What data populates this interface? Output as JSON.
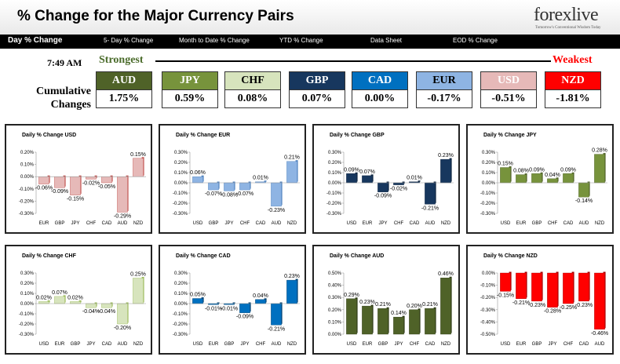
{
  "header": {
    "title": "% Change for the Major Currency Pairs",
    "logo_text": "forexlive",
    "logo_tagline": "Tomorrow's Conventional Wisdom Today"
  },
  "nav": {
    "tabs": [
      {
        "label": "Day % Change",
        "active": true
      },
      {
        "label": "5- Day % Change",
        "active": false
      },
      {
        "label": "Month to Date % Change",
        "active": false
      },
      {
        "label": "YTD % Change",
        "active": false
      },
      {
        "label": "Data Sheet",
        "active": false
      },
      {
        "label": "EOD % Change",
        "active": false
      }
    ]
  },
  "summary": {
    "time": "7:49 AM",
    "strongest_label": "Strongest",
    "weakest_label": "Weakest",
    "cumulative_label_line1": "Cumulative",
    "cumulative_label_line2": "Changes",
    "currencies": [
      {
        "code": "AUD",
        "value": "1.75%",
        "color": "#4f6228",
        "text": "#ffffff"
      },
      {
        "code": "JPY",
        "value": "0.59%",
        "color": "#77933c",
        "text": "#ffffff"
      },
      {
        "code": "CHF",
        "value": "0.08%",
        "color": "#d7e4bd",
        "text": "#000000"
      },
      {
        "code": "GBP",
        "value": "0.07%",
        "color": "#17375e",
        "text": "#ffffff"
      },
      {
        "code": "CAD",
        "value": "0.00%",
        "color": "#0070c0",
        "text": "#ffffff"
      },
      {
        "code": "EUR",
        "value": "-0.17%",
        "color": "#8eb4e3",
        "text": "#000000"
      },
      {
        "code": "USD",
        "value": "-0.51%",
        "color": "#e6b9b8",
        "text": "#ffffff"
      },
      {
        "code": "NZD",
        "value": "-1.81%",
        "color": "#ff0000",
        "text": "#ffffff"
      }
    ]
  },
  "chart_data": [
    {
      "type": "bar",
      "title": "Daily % Change USD",
      "categories": [
        "EUR",
        "GBP",
        "JPY",
        "CHF",
        "CAD",
        "AUD",
        "NZD"
      ],
      "values": [
        -0.06,
        -0.09,
        -0.15,
        -0.02,
        -0.05,
        -0.29,
        0.15
      ],
      "labels": [
        "-0.06%",
        "-0.09%",
        "-0.15%",
        "-0.02%",
        "-0.05%",
        "-0.29%",
        "0.15%"
      ],
      "ylim": [
        -0.3,
        0.2
      ],
      "ticks": [
        0.2,
        0.1,
        0.0,
        -0.1,
        -0.2,
        -0.3
      ],
      "tick_labels": [
        "0.20%",
        "0.10%",
        "0.00%",
        "-0.10%",
        "-0.20%",
        "-0.30%"
      ],
      "color": "#e6b9b8",
      "dark": "#c0504d"
    },
    {
      "type": "bar",
      "title": "Daily % Change EUR",
      "categories": [
        "USD",
        "GBP",
        "JPY",
        "CHF",
        "CAD",
        "AUD",
        "NZD"
      ],
      "values": [
        0.06,
        -0.07,
        -0.08,
        -0.07,
        0.01,
        -0.23,
        0.21
      ],
      "labels": [
        "0.06%",
        "-0.07%",
        "-0.08%",
        "-0.07%",
        "0.01%",
        "-0.23%",
        "0.21%"
      ],
      "ylim": [
        -0.3,
        0.3
      ],
      "ticks": [
        0.3,
        0.2,
        0.1,
        0.0,
        -0.1,
        -0.2,
        -0.3
      ],
      "tick_labels": [
        "0.30%",
        "0.20%",
        "0.10%",
        "0.00%",
        "-0.10%",
        "-0.20%",
        "-0.30%"
      ],
      "color": "#8eb4e3",
      "dark": "#4f81bd"
    },
    {
      "type": "bar",
      "title": "Daily % Change GBP",
      "categories": [
        "USD",
        "EUR",
        "JPY",
        "CHF",
        "CAD",
        "AUD",
        "NZD"
      ],
      "values": [
        0.09,
        0.07,
        -0.09,
        -0.02,
        0.01,
        -0.21,
        0.23
      ],
      "labels": [
        "0.09%",
        "0.07%",
        "-0.09%",
        "-0.02%",
        "0.01%",
        "-0.21%",
        "0.23%"
      ],
      "ylim": [
        -0.3,
        0.3
      ],
      "ticks": [
        0.3,
        0.2,
        0.1,
        0.0,
        -0.1,
        -0.2,
        -0.3
      ],
      "tick_labels": [
        "0.30%",
        "0.20%",
        "0.10%",
        "0.00%",
        "-0.10%",
        "-0.20%",
        "-0.30%"
      ],
      "color": "#17375e",
      "dark": "#0f243e"
    },
    {
      "type": "bar",
      "title": "Daily % Change JPY",
      "categories": [
        "USD",
        "EUR",
        "GBP",
        "CHF",
        "CAD",
        "AUD",
        "NZD"
      ],
      "values": [
        0.15,
        0.08,
        0.09,
        0.04,
        0.09,
        -0.14,
        0.28
      ],
      "labels": [
        "0.15%",
        "0.08%",
        "0.09%",
        "0.04%",
        "0.09%",
        "-0.14%",
        "0.28%"
      ],
      "ylim": [
        -0.3,
        0.3
      ],
      "ticks": [
        0.3,
        0.2,
        0.1,
        0.0,
        -0.1,
        -0.2,
        -0.3
      ],
      "tick_labels": [
        "0.30%",
        "0.20%",
        "0.10%",
        "0.00%",
        "-0.10%",
        "-0.20%",
        "-0.30%"
      ],
      "color": "#77933c",
      "dark": "#4f6228"
    },
    {
      "type": "bar",
      "title": "Daily % Change CHF",
      "categories": [
        "USD",
        "EUR",
        "GBP",
        "JPY",
        "CAD",
        "AUD",
        "NZD"
      ],
      "values": [
        0.02,
        0.07,
        0.02,
        -0.04,
        -0.04,
        -0.2,
        0.25
      ],
      "labels": [
        "0.02%",
        "0.07%",
        "0.02%",
        "-0.04%",
        "-0.04%",
        "-0.20%",
        "0.25%"
      ],
      "ylim": [
        -0.3,
        0.3
      ],
      "ticks": [
        0.3,
        0.2,
        0.1,
        0.0,
        -0.1,
        -0.2,
        -0.3
      ],
      "tick_labels": [
        "0.30%",
        "0.20%",
        "0.10%",
        "0.00%",
        "-0.10%",
        "-0.20%",
        "-0.30%"
      ],
      "color": "#d7e4bd",
      "dark": "#9bbb59"
    },
    {
      "type": "bar",
      "title": "Daily % Change CAD",
      "categories": [
        "USD",
        "EUR",
        "GBP",
        "JPY",
        "CHF",
        "AUD",
        "NZD"
      ],
      "values": [
        0.05,
        -0.01,
        -0.01,
        -0.09,
        0.04,
        -0.21,
        0.23
      ],
      "labels": [
        "0.05%",
        "-0.01%",
        "-0.01%",
        "-0.09%",
        "0.04%",
        "-0.21%",
        "0.23%"
      ],
      "ylim": [
        -0.3,
        0.3
      ],
      "ticks": [
        0.3,
        0.2,
        0.1,
        0.0,
        -0.1,
        -0.2,
        -0.3
      ],
      "tick_labels": [
        "0.30%",
        "0.20%",
        "0.10%",
        "0.00%",
        "-0.10%",
        "-0.20%",
        "-0.30%"
      ],
      "color": "#0070c0",
      "dark": "#003f6e"
    },
    {
      "type": "bar",
      "title": "Daily % Change AUD",
      "categories": [
        "USD",
        "EUR",
        "GBP",
        "JPY",
        "CHF",
        "CAD",
        "NZD"
      ],
      "values": [
        0.29,
        0.23,
        0.21,
        0.14,
        0.2,
        0.21,
        0.46
      ],
      "labels": [
        "0.29%",
        "0.23%",
        "0.21%",
        "0.14%",
        "0.20%",
        "0.21%",
        "0.46%"
      ],
      "ylim": [
        0.0,
        0.5
      ],
      "ticks": [
        0.5,
        0.4,
        0.3,
        0.2,
        0.1,
        0.0
      ],
      "tick_labels": [
        "0.50%",
        "0.40%",
        "0.30%",
        "0.20%",
        "0.10%",
        "0.00%"
      ],
      "color": "#4f6228",
      "dark": "#2f3b17"
    },
    {
      "type": "bar",
      "title": "Daily % Change NZD",
      "categories": [
        "USD",
        "EUR",
        "GBP",
        "JPY",
        "CHF",
        "CAD",
        "AUD"
      ],
      "values": [
        -0.15,
        -0.21,
        -0.23,
        -0.28,
        -0.25,
        -0.23,
        -0.46
      ],
      "labels": [
        "-0.15%",
        "-0.21%",
        "-0.23%",
        "-0.28%",
        "-0.25%",
        "-0.23%",
        "-0.46%"
      ],
      "ylim": [
        -0.5,
        0.0
      ],
      "ticks": [
        0.0,
        -0.1,
        -0.2,
        -0.3,
        -0.4,
        -0.5
      ],
      "tick_labels": [
        "0.00%",
        "-0.10%",
        "-0.20%",
        "-0.30%",
        "-0.40%",
        "-0.50%"
      ],
      "color": "#ff0000",
      "dark": "#a50000"
    }
  ]
}
